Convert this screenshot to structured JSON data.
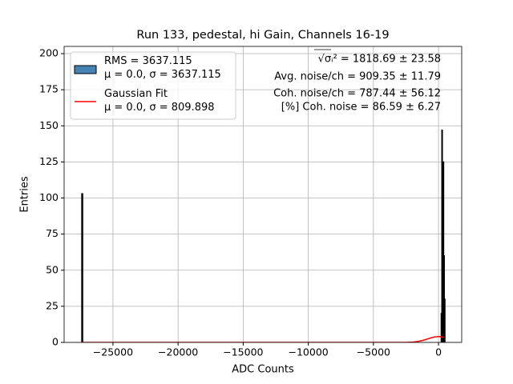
{
  "chart_data": {
    "type": "histogram",
    "title": "Run 133, pedestal, hi Gain, Channels 16-19",
    "x_label": "ADC Counts",
    "y_label": "Entries",
    "xlim": [
      -28750,
      1780
    ],
    "ylim": [
      0,
      205
    ],
    "xticks": [
      {
        "value": -25000,
        "label": "−25000"
      },
      {
        "value": -20000,
        "label": "−20000"
      },
      {
        "value": -15000,
        "label": "−15000"
      },
      {
        "value": -10000,
        "label": "−10000"
      },
      {
        "value": -5000,
        "label": "−5000"
      },
      0
    ],
    "yticks": [
      0,
      25,
      50,
      75,
      100,
      125,
      150,
      175,
      200
    ],
    "grid": true,
    "legend": "upper left",
    "series": [
      {
        "name": "RMS = 3637.115\nμ = 0.0, σ = 3637.115",
        "type": "histogram",
        "color": "#4682b4",
        "bins": [
          -27400,
          -27320,
          200,
          250,
          300,
          350,
          400,
          450,
          500
        ],
        "values": [
          103,
          0,
          20,
          147,
          100,
          125,
          60,
          30
        ]
      },
      {
        "name": "Gaussian Fit\nμ = 0.0, σ = 809.898",
        "type": "line",
        "color": "#ff0000",
        "x": [
          -27400,
          -3000,
          -2400,
          -2000,
          -1600,
          -1200,
          -800,
          -400,
          0,
          400
        ],
        "values": [
          0,
          0,
          0.05,
          0.2,
          0.6,
          1.4,
          2.5,
          3.6,
          4.1,
          3.6
        ]
      }
    ],
    "annotations": [
      "√σᵢ² = 1818.69 ± 23.58",
      "Avg. noise/ch = 909.35 ± 11.79",
      "Coh. noise/ch = 787.44 ± 56.12",
      "[%] Coh. noise = 86.59 ± 6.27"
    ]
  }
}
